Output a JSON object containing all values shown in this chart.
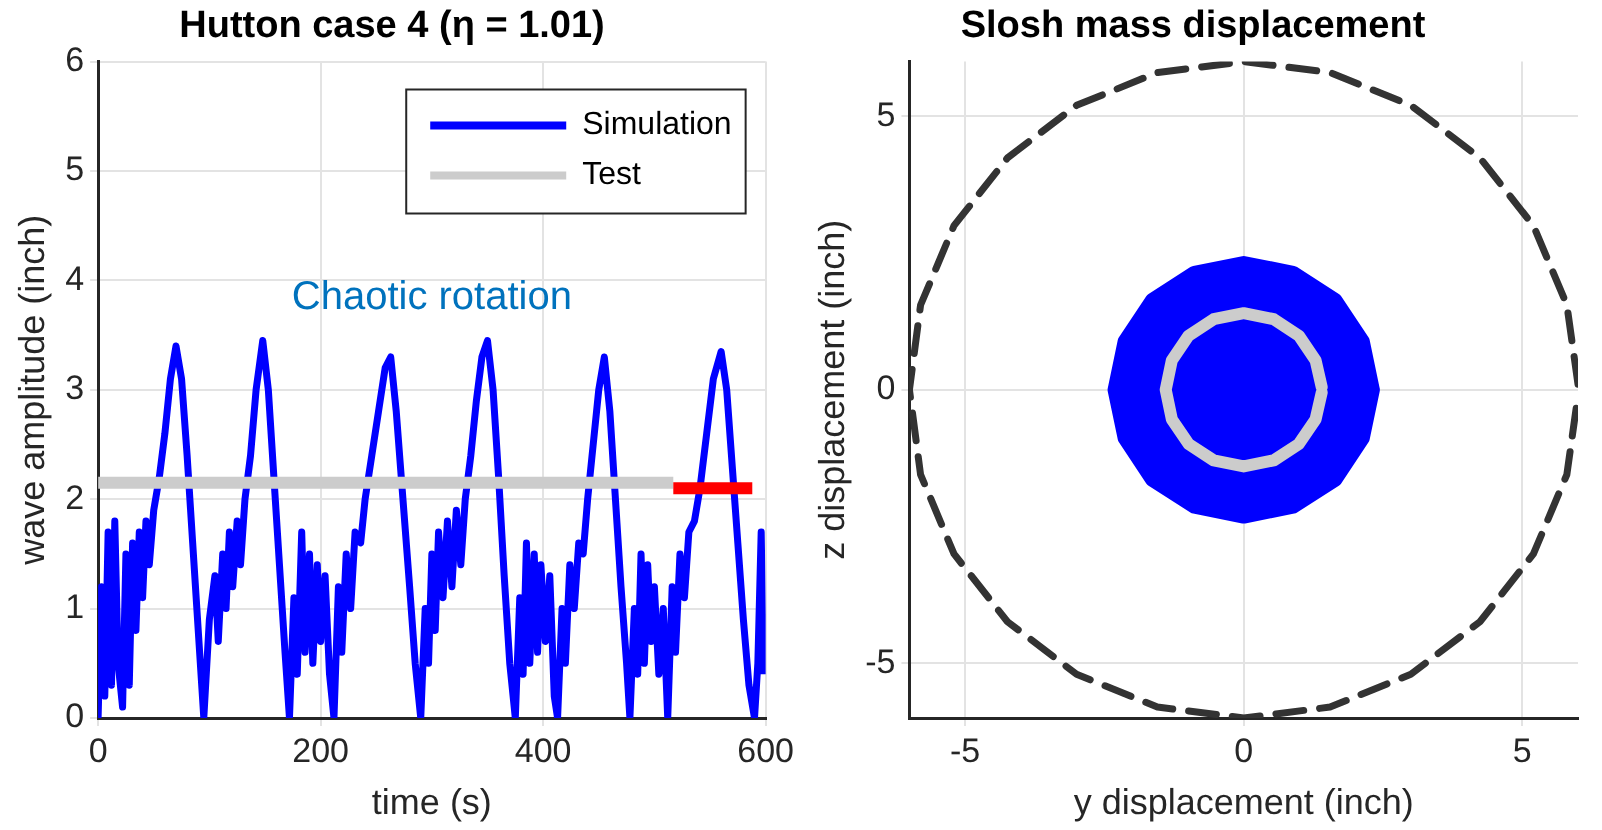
{
  "chart_data": [
    {
      "type": "line",
      "title": "Hutton case 4 (η = 1.01)",
      "xlabel": "time (s)",
      "ylabel": "wave amplitude (inch)",
      "xlim": [
        0,
        600
      ],
      "xticks": [
        0,
        200,
        400,
        600
      ],
      "ylim": [
        0,
        6
      ],
      "yticks": [
        0,
        1,
        2,
        3,
        4,
        5,
        6
      ],
      "grid": true,
      "legend": "top right",
      "annotations": [
        "Chaotic rotation"
      ],
      "series": [
        {
          "name": "Simulation",
          "color": "#0000ff",
          "x": [
            0,
            3,
            6,
            9,
            12,
            15,
            18,
            22,
            25,
            28,
            31,
            34,
            37,
            40,
            43,
            46,
            50,
            55,
            60,
            65,
            70,
            75,
            80,
            85,
            90,
            95,
            100,
            105,
            108,
            112,
            115,
            118,
            121,
            125,
            128,
            132,
            137,
            142,
            148,
            153,
            158,
            163,
            168,
            172,
            176,
            179,
            183,
            186,
            190,
            193,
            197,
            200,
            204,
            208,
            212,
            216,
            219,
            223,
            227,
            231,
            236,
            240,
            246,
            252,
            258,
            263,
            268,
            274,
            280,
            285,
            290,
            294,
            297,
            300,
            303,
            306,
            310,
            314,
            318,
            322,
            326,
            330,
            335,
            340,
            345,
            350,
            355,
            360,
            365,
            370,
            375,
            379,
            382,
            385,
            388,
            392,
            395,
            398,
            402,
            406,
            410,
            413,
            417,
            420,
            424,
            428,
            432,
            436,
            440,
            445,
            450,
            455,
            460,
            465,
            470,
            475,
            478,
            482,
            485,
            488,
            491,
            494,
            497,
            500,
            504,
            508,
            512,
            516,
            519,
            523,
            527,
            531,
            536,
            541,
            547,
            553,
            560,
            565,
            570,
            575,
            580,
            585,
            590,
            593,
            596,
            598
          ],
          "values": [
            0,
            1.2,
            0.2,
            1.7,
            0.3,
            1.8,
            0.5,
            0.1,
            1.5,
            0.3,
            1.6,
            0.8,
            1.7,
            1.1,
            1.8,
            1.4,
            1.9,
            2.2,
            2.6,
            3.1,
            3.4,
            3.1,
            2.4,
            1.6,
            0.8,
            0,
            0.9,
            1.3,
            0.7,
            1.5,
            1.0,
            1.7,
            1.2,
            1.8,
            1.4,
            2.0,
            2.4,
            3.0,
            3.45,
            3.0,
            2.2,
            1.4,
            0.6,
            0,
            1.1,
            0.4,
            1.7,
            0.6,
            1.5,
            0.5,
            1.4,
            0.7,
            1.3,
            0.4,
            0,
            1.2,
            0.6,
            1.5,
            1.0,
            1.7,
            1.6,
            2.0,
            2.4,
            2.8,
            3.2,
            3.3,
            2.8,
            2.0,
            1.2,
            0.5,
            0,
            1.0,
            0.5,
            1.5,
            0.8,
            1.7,
            1.1,
            1.8,
            1.2,
            1.9,
            1.4,
            2.0,
            2.4,
            2.9,
            3.3,
            3.45,
            3.0,
            2.2,
            1.3,
            0.5,
            0,
            1.1,
            0.4,
            1.6,
            0.5,
            1.5,
            0.6,
            1.4,
            0.7,
            1.3,
            0.2,
            0,
            1.0,
            0.5,
            1.4,
            1.0,
            1.6,
            1.5,
            2.0,
            2.5,
            3.0,
            3.3,
            2.8,
            2.0,
            1.2,
            0.5,
            0,
            1.0,
            0.4,
            1.5,
            0.5,
            1.4,
            0.7,
            1.2,
            0.4,
            1.0,
            0,
            1.2,
            0.6,
            1.5,
            1.1,
            1.7,
            1.8,
            2.1,
            2.6,
            3.1,
            3.35,
            3.0,
            2.3,
            1.6,
            0.9,
            0.3,
            0,
            0.5,
            1.7,
            0.4
          ]
        },
        {
          "name": "Test",
          "color": "#cccccc",
          "x": [
            0,
            517
          ],
          "values": [
            2.15,
            2.15
          ]
        },
        {
          "color": "#ff0000",
          "x": [
            517,
            588
          ],
          "values": [
            2.1,
            2.1
          ]
        }
      ]
    },
    {
      "type": "scatter",
      "title": "Slosh mass displacement",
      "xlabel": "y displacement (inch)",
      "ylabel": "z displacement (inch)",
      "xlim": [
        -6,
        6
      ],
      "xticks": [
        -5,
        0,
        5
      ],
      "ylim": [
        -6,
        6
      ],
      "yticks": [
        -5,
        0,
        5
      ],
      "grid": true,
      "series": [
        {
          "type": "area",
          "color": "#0000ff",
          "x": [
            2.3,
            2.12,
            1.63,
            0.88,
            0,
            -0.88,
            -1.63,
            -2.12,
            -2.3,
            -2.12,
            -1.63,
            -0.88,
            0,
            0.88,
            1.63,
            2.12,
            2.3
          ],
          "values": [
            0,
            0.88,
            1.63,
            2.12,
            2.3,
            2.12,
            1.63,
            0.88,
            0,
            -0.88,
            -1.63,
            -2.12,
            -2.3,
            -2.12,
            -1.63,
            -0.88,
            0
          ]
        },
        {
          "type": "line",
          "color": "#cccccc",
          "x": [
            1.4,
            1.29,
            0.99,
            0.54,
            0,
            -0.54,
            -0.99,
            -1.29,
            -1.4,
            -1.29,
            -0.99,
            -0.54,
            0,
            0.54,
            0.99,
            1.29,
            1.4
          ],
          "values": [
            0.05,
            0.54,
            0.99,
            1.29,
            1.4,
            1.29,
            0.99,
            0.54,
            0,
            -0.54,
            -0.99,
            -1.29,
            -1.4,
            -1.29,
            -0.99,
            -0.54,
            -0.05
          ]
        },
        {
          "type": "line",
          "color": "#333333",
          "line_style": "dashed",
          "x": [
            6,
            5.8,
            5.2,
            4.24,
            3,
            1.55,
            0,
            -1.55,
            -3,
            -4.24,
            -5.2,
            -5.8,
            -6,
            -5.8,
            -5.2,
            -4.24,
            -3,
            -1.55,
            0,
            1.55,
            3,
            4.24,
            5.2,
            5.8,
            6
          ],
          "values": [
            0.1,
            1.55,
            3,
            4.24,
            5.2,
            5.8,
            6,
            5.8,
            5.2,
            4.24,
            3,
            1.55,
            0,
            -1.55,
            -3,
            -4.24,
            -5.2,
            -5.8,
            -6,
            -5.8,
            -5.2,
            -4.24,
            -3,
            -1.55,
            -0.1
          ]
        }
      ]
    }
  ]
}
